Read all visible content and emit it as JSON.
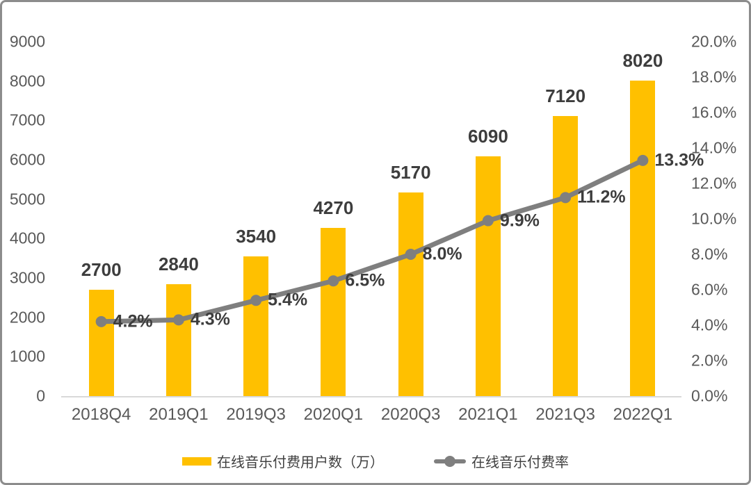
{
  "chart_data": {
    "type": "bar",
    "subtype": "combo-bar-line",
    "categories": [
      "2018Q4",
      "2019Q1",
      "2019Q3",
      "2020Q1",
      "2020Q3",
      "2021Q1",
      "2021Q3",
      "2022Q1"
    ],
    "series": [
      {
        "name": "在线音乐付费用户数（万）",
        "type": "bar",
        "axis": "left",
        "color": "#FFC000",
        "values": [
          2700,
          2840,
          3540,
          4270,
          5170,
          6090,
          7120,
          8020
        ],
        "labels": [
          "2700",
          "2840",
          "3540",
          "4270",
          "5170",
          "6090",
          "7120",
          "8020"
        ]
      },
      {
        "name": "在线音乐付费率",
        "type": "line",
        "axis": "right",
        "color": "#7F7F7F",
        "values": [
          4.2,
          4.3,
          5.4,
          6.5,
          8.0,
          9.9,
          11.2,
          13.3
        ],
        "labels": [
          "4.2%",
          "4.3%",
          "5.4%",
          "6.5%",
          "8.0%",
          "9.9%",
          "11.2%",
          "13.3%"
        ]
      }
    ],
    "left_axis": {
      "min": 0,
      "max": 9000,
      "step": 1000,
      "ticks": [
        "0",
        "1000",
        "2000",
        "3000",
        "4000",
        "5000",
        "6000",
        "7000",
        "8000",
        "9000"
      ]
    },
    "right_axis": {
      "min": 0,
      "max": 20,
      "step": 2,
      "ticks": [
        "0.0%",
        "2.0%",
        "4.0%",
        "6.0%",
        "8.0%",
        "10.0%",
        "12.0%",
        "14.0%",
        "16.0%",
        "18.0%",
        "20.0%"
      ]
    },
    "title": "",
    "xlabel": "",
    "ylabel": "",
    "grid": false,
    "legend_position": "bottom",
    "legend": [
      {
        "label": "在线音乐付费用户数（万）",
        "swatch": "bar"
      },
      {
        "label": "在线音乐付费率",
        "swatch": "line"
      }
    ]
  },
  "colors": {
    "bar": "#FFC000",
    "line": "#7F7F7F",
    "value_label": "#3D3D3D",
    "axis_label": "#595959",
    "axis_line": "#D9D9D9",
    "frame_border": "#8C8C8C",
    "background": "#FFFFFF"
  }
}
